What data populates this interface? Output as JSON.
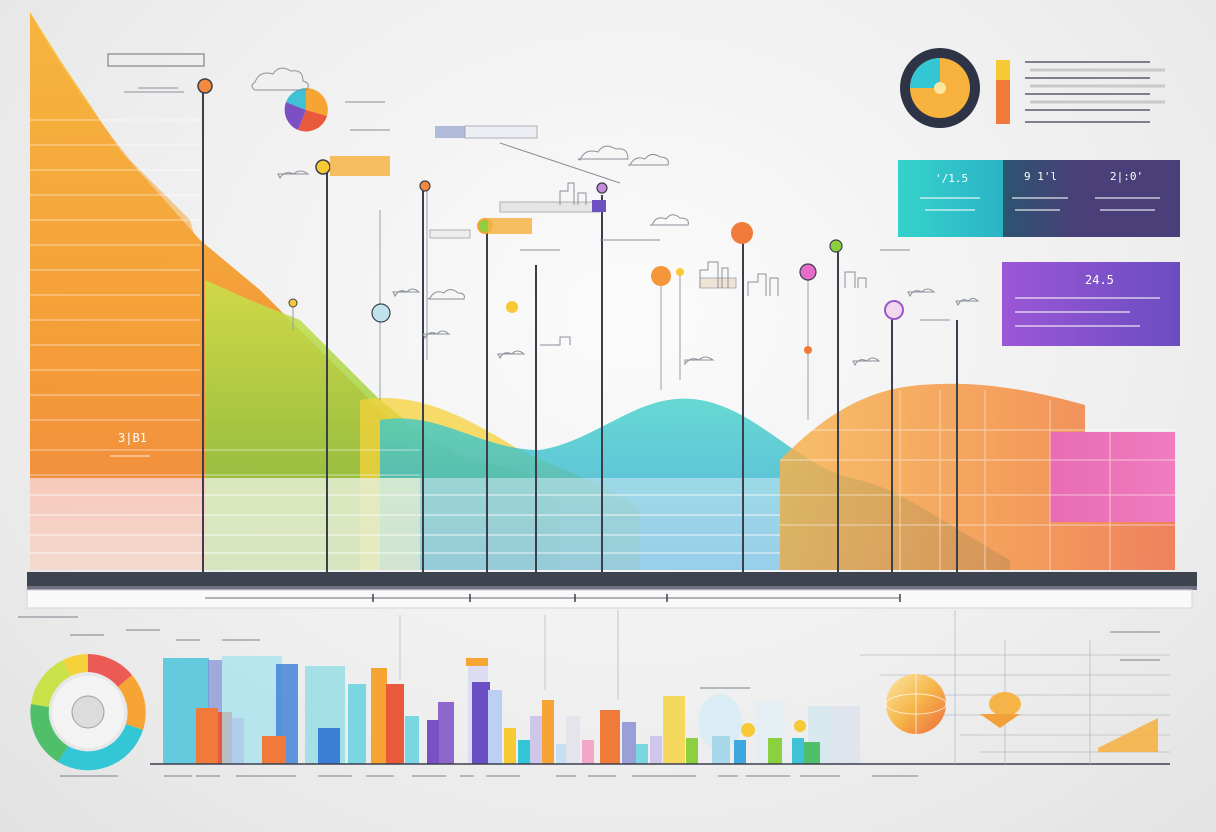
{
  "labels": {
    "left_bar_value": "3|B1",
    "top_card_1": "'/1.5",
    "top_card_2": "9 1'l",
    "top_card_3": "2|:0'",
    "purple_card": "24.5"
  },
  "colors": {
    "orange": "#f4a73a",
    "yellow": "#f6c935",
    "green": "#8ccf3f",
    "teal": "#2ec7c4",
    "blue": "#3fa7e0",
    "purple": "#7d4fc4",
    "pink": "#e66bc7",
    "red": "#ec5a3c",
    "dark": "#3b3f4c"
  },
  "icons": [
    "donut-chart-icon",
    "pie-chart-icon",
    "cloud-icon",
    "pin-marker-icon",
    "building-sketch-icon",
    "sphere-icon"
  ]
}
